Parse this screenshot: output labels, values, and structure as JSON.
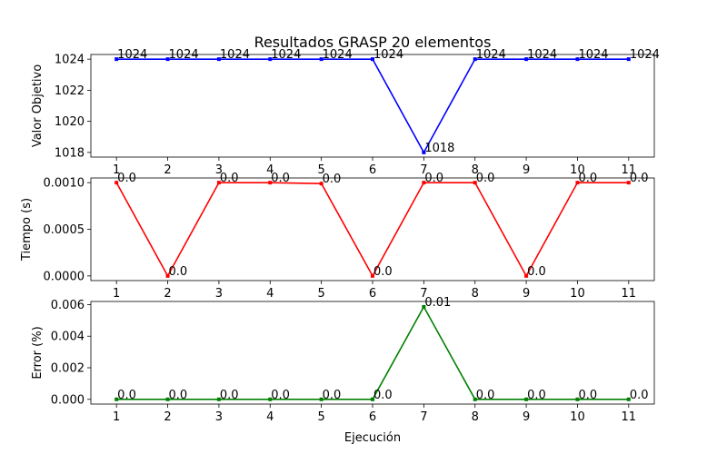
{
  "figure": {
    "title": "Resultados GRASP 20 elementos"
  },
  "chart_data": [
    {
      "type": "line",
      "title": "Resultados GRASP 20 elementos",
      "xlabel": "",
      "ylabel": "Valor Objetivo",
      "x": [
        1,
        2,
        3,
        4,
        5,
        6,
        7,
        8,
        9,
        10,
        11
      ],
      "xticks": [
        "1",
        "2",
        "3",
        "4",
        "5",
        "6",
        "7",
        "8",
        "9",
        "10",
        "11"
      ],
      "yticks": [
        "1018",
        "1020",
        "1022",
        "1024"
      ],
      "ytick_values": [
        1018,
        1020,
        1022,
        1024
      ],
      "ylim": [
        1017.7,
        1024.3
      ],
      "xlim": [
        0.5,
        11.5
      ],
      "grid": false,
      "color": "#0000ff",
      "series": [
        {
          "values": [
            1024,
            1024,
            1024,
            1024,
            1024,
            1024,
            1018,
            1024,
            1024,
            1024,
            1024
          ],
          "labels": [
            "1024",
            "1024",
            "1024",
            "1024",
            "1024",
            "1024",
            "1018",
            "1024",
            "1024",
            "1024",
            "1024"
          ]
        }
      ]
    },
    {
      "type": "line",
      "title": "",
      "xlabel": "",
      "ylabel": "Tiempo (s)",
      "x": [
        1,
        2,
        3,
        4,
        5,
        6,
        7,
        8,
        9,
        10,
        11
      ],
      "xticks": [
        "1",
        "2",
        "3",
        "4",
        "5",
        "6",
        "7",
        "8",
        "9",
        "10",
        "11"
      ],
      "yticks": [
        "0.0000",
        "0.0005",
        "0.0010"
      ],
      "ytick_values": [
        0,
        0.0005,
        0.001
      ],
      "ylim": [
        -5e-05,
        0.00105
      ],
      "xlim": [
        0.5,
        11.5
      ],
      "grid": false,
      "color": "#ff0000",
      "series": [
        {
          "values": [
            0.001,
            0.0,
            0.001,
            0.001,
            0.00099,
            0.0,
            0.001,
            0.001,
            0.0,
            0.001,
            0.001
          ],
          "labels": [
            "0.0",
            "0.0",
            "0.0",
            "0.0",
            "0.0",
            "0.0",
            "0.0",
            "0.0",
            "0.0",
            "0.0",
            "0.0"
          ]
        }
      ]
    },
    {
      "type": "line",
      "title": "",
      "xlabel": "Ejecución",
      "ylabel": "Error (%)",
      "x": [
        1,
        2,
        3,
        4,
        5,
        6,
        7,
        8,
        9,
        10,
        11
      ],
      "xticks": [
        "1",
        "2",
        "3",
        "4",
        "5",
        "6",
        "7",
        "8",
        "9",
        "10",
        "11"
      ],
      "yticks": [
        "0.000",
        "0.002",
        "0.004",
        "0.006"
      ],
      "ytick_values": [
        0,
        0.002,
        0.004,
        0.006
      ],
      "ylim": [
        -0.0003,
        0.0062
      ],
      "xlim": [
        0.5,
        11.5
      ],
      "grid": false,
      "color": "#008000",
      "series": [
        {
          "values": [
            0,
            0,
            0,
            0,
            0,
            0,
            0.00586,
            0,
            0,
            0,
            0
          ],
          "labels": [
            "0.0",
            "0.0",
            "0.0",
            "0.0",
            "0.0",
            "0.0",
            "0.01",
            "0.0",
            "0.0",
            "0.0",
            "0.0"
          ]
        }
      ]
    }
  ]
}
